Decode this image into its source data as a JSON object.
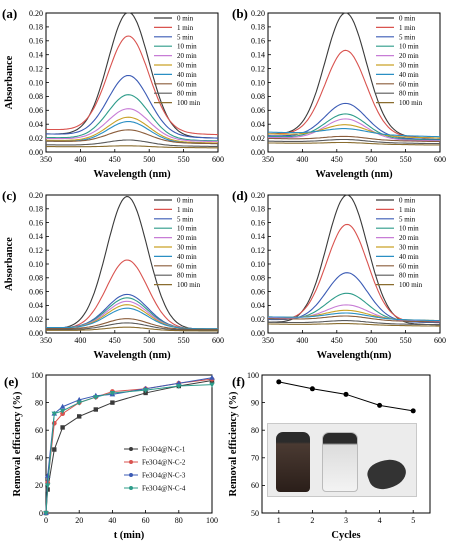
{
  "chart_data": [
    {
      "panel": "(a)",
      "type": "line",
      "xlabel": "Wavelength (nm)",
      "ylabel": "Absorbance",
      "xlim": [
        350,
        600
      ],
      "ylim": [
        0,
        0.2
      ],
      "xticks": [
        "350",
        "400",
        "450",
        "500",
        "550",
        "600"
      ],
      "yticks": [
        "0.00",
        "0.02",
        "0.04",
        "0.06",
        "0.08",
        "0.10",
        "0.12",
        "0.14",
        "0.16",
        "0.18",
        "0.20"
      ],
      "legend_position": "top-right",
      "peak_nm": 470,
      "series": [
        {
          "name": "0 min",
          "color": "#3a3a3a",
          "peak": 0.198,
          "base": 0.02
        },
        {
          "name": "1 min",
          "color": "#d9534f",
          "peak": 0.163,
          "base": 0.025
        },
        {
          "name": "5 min",
          "color": "#3b5bb5",
          "peak": 0.107,
          "base": 0.02
        },
        {
          "name": "10 min",
          "color": "#2e9c8a",
          "peak": 0.08,
          "base": 0.016
        },
        {
          "name": "20 min",
          "color": "#c77cd6",
          "peak": 0.06,
          "base": 0.015
        },
        {
          "name": "30 min",
          "color": "#c9a227",
          "peak": 0.048,
          "base": 0.013
        },
        {
          "name": "40 min",
          "color": "#2a8fc4",
          "peak": 0.042,
          "base": 0.012
        },
        {
          "name": "60 min",
          "color": "#8b5e3c",
          "peak": 0.03,
          "base": 0.012
        },
        {
          "name": "80 min",
          "color": "#5a5a5a",
          "peak": 0.016,
          "base": 0.008
        },
        {
          "name": "100 min",
          "color": "#8a6d2f",
          "peak": 0.008,
          "base": 0.006
        }
      ]
    },
    {
      "panel": "(b)",
      "type": "line",
      "xlabel": "Wavelength (nm)",
      "ylabel": "",
      "xlim": [
        350,
        600
      ],
      "ylim": [
        0,
        0.2
      ],
      "xticks": [
        "350",
        "400",
        "450",
        "500",
        "550",
        "600"
      ],
      "yticks": [
        "0.00",
        "0.02",
        "0.04",
        "0.06",
        "0.08",
        "0.10",
        "0.12",
        "0.14",
        "0.16",
        "0.18",
        "0.20"
      ],
      "legend_position": "top-right",
      "peak_nm": 463,
      "series": [
        {
          "name": "0 min",
          "color": "#3a3a3a",
          "peak": 0.197,
          "base": 0.02
        },
        {
          "name": "1 min",
          "color": "#d9534f",
          "peak": 0.143,
          "base": 0.02
        },
        {
          "name": "5 min",
          "color": "#3b5bb5",
          "peak": 0.067,
          "base": 0.018
        },
        {
          "name": "10 min",
          "color": "#2e9c8a",
          "peak": 0.052,
          "base": 0.017
        },
        {
          "name": "20 min",
          "color": "#c77cd6",
          "peak": 0.045,
          "base": 0.016
        },
        {
          "name": "30 min",
          "color": "#c9a227",
          "peak": 0.036,
          "base": 0.02
        },
        {
          "name": "40 min",
          "color": "#2a8fc4",
          "peak": 0.03,
          "base": 0.022
        },
        {
          "name": "60 min",
          "color": "#8b5e3c",
          "peak": 0.02,
          "base": 0.015
        },
        {
          "name": "80 min",
          "color": "#5a5a5a",
          "peak": 0.016,
          "base": 0.012
        },
        {
          "name": "100 min",
          "color": "#8a6d2f",
          "peak": 0.012,
          "base": 0.01
        }
      ]
    },
    {
      "panel": "(c)",
      "type": "line",
      "xlabel": "Wavelength (nm)",
      "ylabel": "Absorbance",
      "xlim": [
        350,
        600
      ],
      "ylim": [
        0,
        0.2
      ],
      "xticks": [
        "350",
        "400",
        "450",
        "500",
        "550",
        "600"
      ],
      "yticks": [
        "0.00",
        "0.02",
        "0.04",
        "0.06",
        "0.08",
        "0.10",
        "0.12",
        "0.14",
        "0.16",
        "0.18",
        "0.20"
      ],
      "legend_position": "top-right",
      "peak_nm": 468,
      "series": [
        {
          "name": "0 min",
          "color": "#3a3a3a",
          "peak": 0.197,
          "base": 0.005
        },
        {
          "name": "1 min",
          "color": "#d9534f",
          "peak": 0.105,
          "base": 0.005
        },
        {
          "name": "5 min",
          "color": "#3b5bb5",
          "peak": 0.055,
          "base": 0.006
        },
        {
          "name": "10 min",
          "color": "#2e9c8a",
          "peak": 0.05,
          "base": 0.006
        },
        {
          "name": "20 min",
          "color": "#c77cd6",
          "peak": 0.045,
          "base": 0.006
        },
        {
          "name": "30 min",
          "color": "#c9a227",
          "peak": 0.04,
          "base": 0.006
        },
        {
          "name": "40 min",
          "color": "#2a8fc4",
          "peak": 0.035,
          "base": 0.006
        },
        {
          "name": "60 min",
          "color": "#8b5e3c",
          "peak": 0.02,
          "base": 0.005
        },
        {
          "name": "80 min",
          "color": "#5a5a5a",
          "peak": 0.014,
          "base": 0.004
        },
        {
          "name": "100 min",
          "color": "#8a6d2f",
          "peak": 0.008,
          "base": 0.003
        }
      ]
    },
    {
      "panel": "(d)",
      "type": "line",
      "xlabel": "Wavelength(nm)",
      "ylabel": "",
      "xlim": [
        350,
        600
      ],
      "ylim": [
        0,
        0.2
      ],
      "xticks": [
        "350",
        "400",
        "450",
        "500",
        "550",
        "600"
      ],
      "yticks": [
        "0.00",
        "0.02",
        "0.04",
        "0.06",
        "0.08",
        "0.10",
        "0.12",
        "0.14",
        "0.16",
        "0.18",
        "0.20"
      ],
      "legend_position": "top-right",
      "peak_nm": 465,
      "series": [
        {
          "name": "0 min",
          "color": "#3a3a3a",
          "peak": 0.198,
          "base": 0.012
        },
        {
          "name": "1 min",
          "color": "#d9534f",
          "peak": 0.155,
          "base": 0.015
        },
        {
          "name": "5 min",
          "color": "#3b5bb5",
          "peak": 0.085,
          "base": 0.015
        },
        {
          "name": "10 min",
          "color": "#2e9c8a",
          "peak": 0.055,
          "base": 0.016
        },
        {
          "name": "20 min",
          "color": "#c77cd6",
          "peak": 0.038,
          "base": 0.017
        },
        {
          "name": "30 min",
          "color": "#c9a227",
          "peak": 0.03,
          "base": 0.018
        },
        {
          "name": "40 min",
          "color": "#2a8fc4",
          "peak": 0.026,
          "base": 0.018
        },
        {
          "name": "60 min",
          "color": "#8b5e3c",
          "peak": 0.022,
          "base": 0.016
        },
        {
          "name": "80 min",
          "color": "#5a5a5a",
          "peak": 0.016,
          "base": 0.012
        },
        {
          "name": "100 min",
          "color": "#8a6d2f",
          "peak": 0.012,
          "base": 0.01
        }
      ]
    },
    {
      "panel": "(e)",
      "type": "line",
      "xlabel": "t (min)",
      "ylabel": "Removal efficiency (%)",
      "xlim": [
        0,
        100
      ],
      "ylim": [
        0,
        100
      ],
      "xticks": [
        "0",
        "20",
        "40",
        "60",
        "80",
        "100"
      ],
      "yticks": [
        "0",
        "20",
        "40",
        "60",
        "80",
        "100"
      ],
      "legend_position": "right-center",
      "x": [
        0,
        1,
        5,
        10,
        20,
        30,
        40,
        60,
        80,
        100
      ],
      "series": [
        {
          "name": "Fe3O4@N-C-1",
          "color": "#3a3a3a",
          "marker": "square",
          "values": [
            0,
            17,
            46,
            62,
            70,
            75,
            80,
            87,
            92,
            96
          ]
        },
        {
          "name": "Fe3O4@N-C-2",
          "color": "#d9534f",
          "marker": "circle",
          "values": [
            0,
            22,
            65,
            72,
            80,
            84,
            88,
            90,
            94,
            97
          ]
        },
        {
          "name": "Fe3O4@N-C-3",
          "color": "#3b5bb5",
          "marker": "triangle-up",
          "values": [
            0,
            27,
            72,
            77,
            82,
            85,
            86,
            90,
            94,
            98
          ]
        },
        {
          "name": "Fe3O4@N-C-4",
          "color": "#2e9c8a",
          "marker": "triangle-down",
          "values": [
            0,
            20,
            72,
            74,
            80,
            84,
            87,
            89,
            92,
            93
          ]
        }
      ]
    },
    {
      "panel": "(f)",
      "type": "line",
      "xlabel": "Cycles",
      "ylabel": "Removal efficiency (%)",
      "xlim": [
        0.5,
        5.5
      ],
      "ylim": [
        50,
        100
      ],
      "xticks": [
        "1",
        "2",
        "3",
        "4",
        "5"
      ],
      "yticks": [
        "50",
        "60",
        "70",
        "80",
        "90",
        "100"
      ],
      "x": [
        1,
        2,
        3,
        4,
        5
      ],
      "series": [
        {
          "color": "#000000",
          "marker": "circle",
          "values": [
            97.5,
            95,
            93,
            89,
            87
          ]
        }
      ]
    }
  ]
}
